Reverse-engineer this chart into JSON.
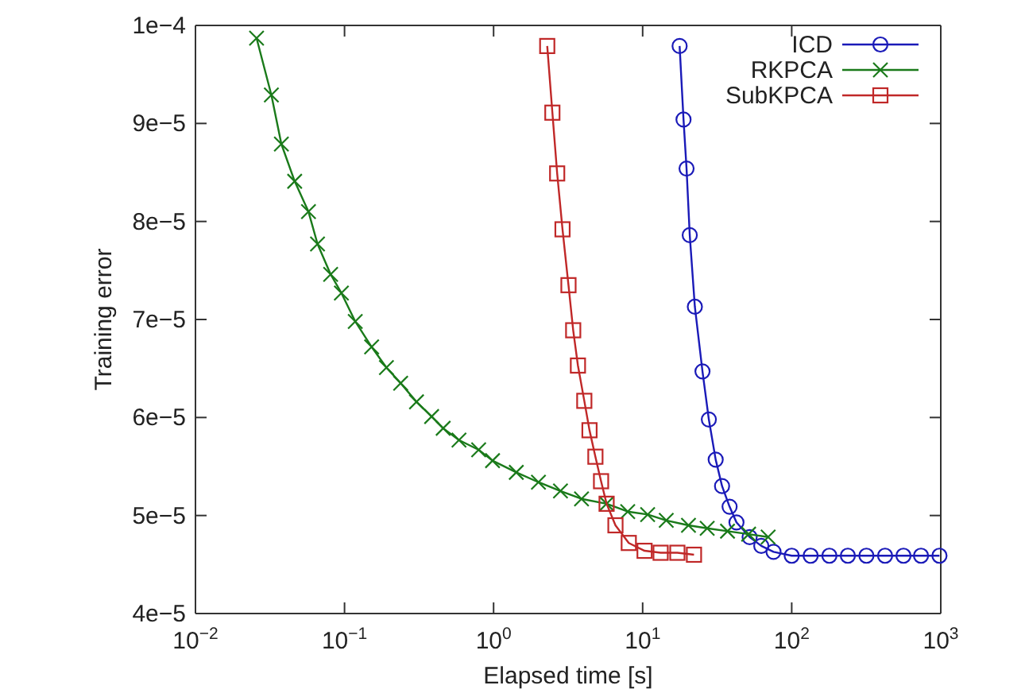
{
  "chart_data": {
    "type": "line",
    "xlabel": "Elapsed time [s]",
    "ylabel": "Training error",
    "log": "x",
    "grid": false,
    "legend": "top right",
    "xlim": [
      0.01,
      1000
    ],
    "ylim": [
      4e-05,
      0.0001
    ],
    "xticks": [
      {
        "value": 0.01,
        "label": "10$^{−2}$"
      },
      {
        "value": 0.1,
        "label": "10$^{−1}$"
      },
      {
        "value": 1,
        "label": "10$^{0}$"
      },
      {
        "value": 10,
        "label": "10$^{1}$"
      },
      {
        "value": 100,
        "label": "10$^{2}$"
      },
      {
        "value": 1000,
        "label": "10$^{3}$"
      }
    ],
    "yticks": [
      {
        "value": 4e-05,
        "label": "4e−5"
      },
      {
        "value": 5e-05,
        "label": "5e−5"
      },
      {
        "value": 6e-05,
        "label": "6e−5"
      },
      {
        "value": 7e-05,
        "label": "7e−5"
      },
      {
        "value": 8e-05,
        "label": "8e−5"
      },
      {
        "value": 9e-05,
        "label": "9e−5"
      },
      {
        "value": 0.0001,
        "label": "1e−4"
      }
    ],
    "series": [
      {
        "name": "ICD",
        "color": "#1a1ab8",
        "marker": "circle",
        "x": [
          17.7,
          18.8,
          19.7,
          20.7,
          22.4,
          25.2,
          27.8,
          30.9,
          34.1,
          38.3,
          42.6,
          52.2,
          62.5,
          75.5,
          100,
          134,
          179,
          238,
          317,
          423,
          562,
          737,
          980
        ],
        "values": [
          9.79e-05,
          9.04e-05,
          8.54e-05,
          7.86e-05,
          7.13e-05,
          6.47e-05,
          5.98e-05,
          5.57e-05,
          5.3e-05,
          5.09e-05,
          4.93e-05,
          4.78e-05,
          4.69e-05,
          4.63e-05,
          4.59e-05,
          4.59e-05,
          4.59e-05,
          4.59e-05,
          4.59e-05,
          4.59e-05,
          4.59e-05,
          4.59e-05,
          4.59e-05
        ]
      },
      {
        "name": "RKPCA",
        "color": "#1a7a1a",
        "marker": "cross",
        "x": [
          0.0257,
          0.0323,
          0.0377,
          0.0463,
          0.0573,
          0.0659,
          0.0807,
          0.0953,
          0.118,
          0.152,
          0.191,
          0.238,
          0.304,
          0.384,
          0.459,
          0.586,
          0.794,
          0.984,
          1.42,
          2.0,
          2.81,
          3.89,
          5.73,
          7.94,
          10.8,
          14.4,
          20.3,
          27.1,
          37.1,
          51.4,
          69.5
        ],
        "values": [
          9.87e-05,
          9.29e-05,
          8.79e-05,
          8.41e-05,
          8.1e-05,
          7.77e-05,
          7.46e-05,
          7.27e-05,
          6.98e-05,
          6.72e-05,
          6.51e-05,
          6.35e-05,
          6.16e-05,
          6.01e-05,
          5.89e-05,
          5.77e-05,
          5.67e-05,
          5.56e-05,
          5.44e-05,
          5.34e-05,
          5.25e-05,
          5.17e-05,
          5.12e-05,
          5.04e-05,
          5.01e-05,
          4.95e-05,
          4.9e-05,
          4.87e-05,
          4.84e-05,
          4.81e-05,
          4.78e-05
        ]
      },
      {
        "name": "SubKPCA",
        "color": "#c02828",
        "marker": "square",
        "x": [
          2.29,
          2.48,
          2.67,
          2.9,
          3.18,
          3.42,
          3.68,
          4.06,
          4.4,
          4.82,
          5.26,
          5.73,
          6.57,
          8.07,
          10.3,
          13.2,
          17.1,
          22.1
        ],
        "values": [
          9.79e-05,
          9.11e-05,
          8.49e-05,
          7.92e-05,
          7.35e-05,
          6.89e-05,
          6.53e-05,
          6.17e-05,
          5.87e-05,
          5.6e-05,
          5.35e-05,
          5.12e-05,
          4.9e-05,
          4.72e-05,
          4.64e-05,
          4.62e-05,
          4.62e-05,
          4.6e-05
        ]
      }
    ]
  }
}
